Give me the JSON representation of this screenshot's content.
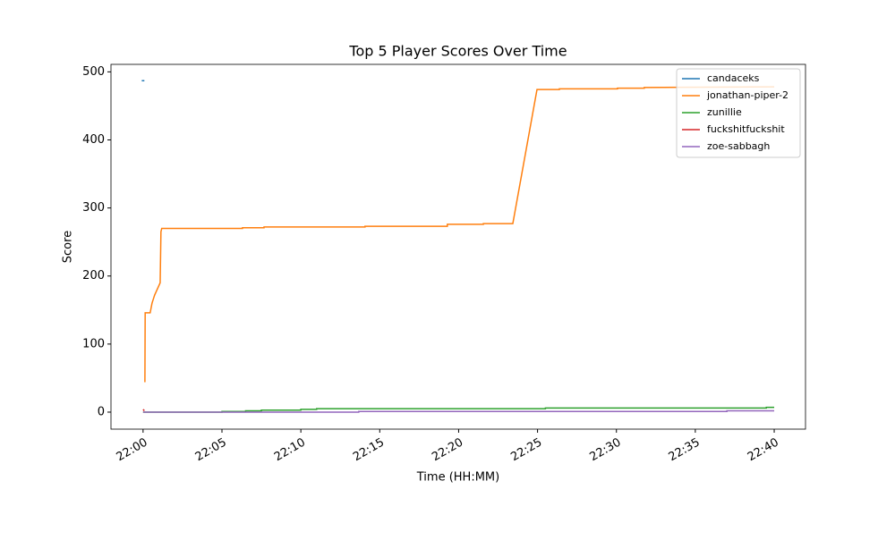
{
  "chart_data": {
    "type": "line",
    "title": "Top 5 Player Scores Over Time",
    "x_label": "Time (HH:MM)",
    "y_label": "Score",
    "xlim": [
      "21:57:58",
      "22:41:59"
    ],
    "xticks": [
      "22:00",
      "22:05",
      "22:10",
      "22:15",
      "22:20",
      "22:25",
      "22:30",
      "22:35",
      "22:40"
    ],
    "ylim": [
      -25,
      511
    ],
    "yticks": [
      0,
      100,
      200,
      300,
      400,
      500
    ],
    "legend": "upper right",
    "series": [
      {
        "name": "candaceks",
        "color": "#1f77b4",
        "x": [
          "21:59:55",
          "22:00:05"
        ],
        "values": [
          487,
          487
        ]
      },
      {
        "name": "jonathan-piper-2",
        "color": "#ff7f0e",
        "x": [
          "22:00:07",
          "22:00:08",
          "22:00:27",
          "22:00:34",
          "22:00:44",
          "22:01:05",
          "22:01:08",
          "22:01:11",
          "22:06:18",
          "22:06:18",
          "22:07:40",
          "22:07:40",
          "22:14:04",
          "22:14:04",
          "22:19:17",
          "22:19:17",
          "22:21:34",
          "22:21:34",
          "22:23:26",
          "22:24:58",
          "22:26:23",
          "22:26:23",
          "22:30:04",
          "22:30:04",
          "22:31:46",
          "22:31:46",
          "22:40:00"
        ],
        "values": [
          44,
          146,
          146,
          160,
          172,
          190,
          265,
          270,
          270,
          271,
          271,
          272,
          272,
          273,
          273,
          276,
          276,
          277,
          277,
          474,
          474,
          475,
          475,
          476,
          476,
          477,
          478
        ]
      },
      {
        "name": "zunillie",
        "color": "#2ca02c",
        "x": [
          "22:00:00",
          "22:05:00",
          "22:05:00",
          "22:06:30",
          "22:06:30",
          "22:07:30",
          "22:07:30",
          "22:10:00",
          "22:10:00",
          "22:11:00",
          "22:11:00",
          "22:25:30",
          "22:25:30",
          "22:39:30",
          "22:39:30",
          "22:40:00"
        ],
        "values": [
          0,
          0,
          1,
          1,
          2,
          2,
          3,
          3,
          4,
          4,
          5,
          5,
          6,
          6,
          7,
          7
        ]
      },
      {
        "name": "fuckshitfuckshit",
        "color": "#d62728",
        "x": [
          "22:00:00",
          "22:00:05"
        ],
        "values": [
          4,
          2
        ]
      },
      {
        "name": "zoe-sabbagh",
        "color": "#9467bd",
        "x": [
          "22:00:00",
          "22:13:40",
          "22:13:40",
          "22:37:00",
          "22:37:00",
          "22:40:00"
        ],
        "values": [
          0,
          0,
          1,
          1,
          2,
          2
        ]
      }
    ]
  }
}
